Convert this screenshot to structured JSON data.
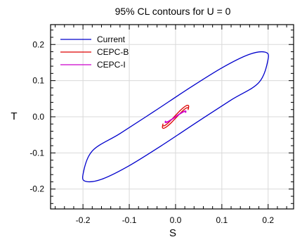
{
  "chart_data": {
    "type": "line",
    "title": "95% CL contours for U = 0",
    "xlabel": "S",
    "ylabel": "T",
    "xlim": [
      -0.27,
      0.255
    ],
    "ylim": [
      -0.255,
      0.255
    ],
    "xticks": [
      -0.2,
      -0.1,
      0.0,
      0.1,
      0.2
    ],
    "yticks": [
      -0.2,
      -0.1,
      0.0,
      0.1,
      0.2
    ],
    "xtick_labels": [
      "-0.2",
      "-0.1",
      "0.0",
      "0.1",
      "0.2"
    ],
    "ytick_labels": [
      "-0.2",
      "-0.1",
      "0.0",
      "0.1",
      "0.2"
    ],
    "grid": true,
    "legend_position": "top-left",
    "series": [
      {
        "name": "Current",
        "color": "#0000cc",
        "x": [
          0.2,
          0.1928,
          0.1584,
          0.1022,
          0.0311,
          -0.0462,
          -0.1202,
          -0.18,
          -0.2,
          -0.1928,
          -0.1584,
          -0.1022,
          -0.0311,
          0.0462,
          0.1202,
          0.18,
          0.2
        ],
        "y": [
          0.16,
          0.179,
          0.1723,
          0.1369,
          0.0804,
          0.0149,
          -0.0466,
          -0.0947,
          -0.16,
          -0.179,
          -0.1723,
          -0.1369,
          -0.0804,
          -0.0149,
          0.0466,
          0.0947,
          0.16
        ]
      },
      {
        "name": "CEPC-B",
        "color": "#dd0000",
        "x": [
          0.0272,
          0.0284,
          0.0254,
          0.0187,
          0.0094,
          -0.0009,
          -0.0108,
          -0.019,
          -0.0248,
          -0.0275,
          -0.0272,
          -0.0284,
          -0.0254,
          -0.0187,
          -0.0094,
          0.0009,
          0.0108,
          0.019,
          0.0248,
          0.0275,
          0.0272
        ],
        "y": [
          0.02,
          0.0294,
          0.0318,
          0.027,
          0.0165,
          0.0028,
          -0.0106,
          -0.0204,
          -0.025,
          -0.0239,
          -0.02,
          -0.0294,
          -0.0318,
          -0.027,
          -0.0165,
          -0.0028,
          0.0106,
          0.0204,
          0.025,
          0.0239,
          0.02
        ]
      },
      {
        "name": "CEPC-I",
        "color": "#cc00cc",
        "x": [
          0.022,
          0.0223,
          0.0192,
          0.0133,
          0.0057,
          -0.0025,
          -0.0101,
          -0.0159,
          -0.0193,
          -0.0206,
          -0.022,
          -0.0223,
          -0.0192,
          -0.0133,
          -0.0057,
          0.0025,
          0.0101,
          0.0159,
          0.0193,
          0.0206,
          0.022
        ],
        "y": [
          0.012,
          0.0158,
          0.0156,
          0.0118,
          0.0055,
          -0.0017,
          -0.0081,
          -0.0126,
          -0.0144,
          -0.0137,
          -0.012,
          -0.0158,
          -0.0156,
          -0.0118,
          -0.0055,
          0.0017,
          0.0081,
          0.0126,
          0.0144,
          0.0137,
          0.012
        ]
      }
    ]
  }
}
